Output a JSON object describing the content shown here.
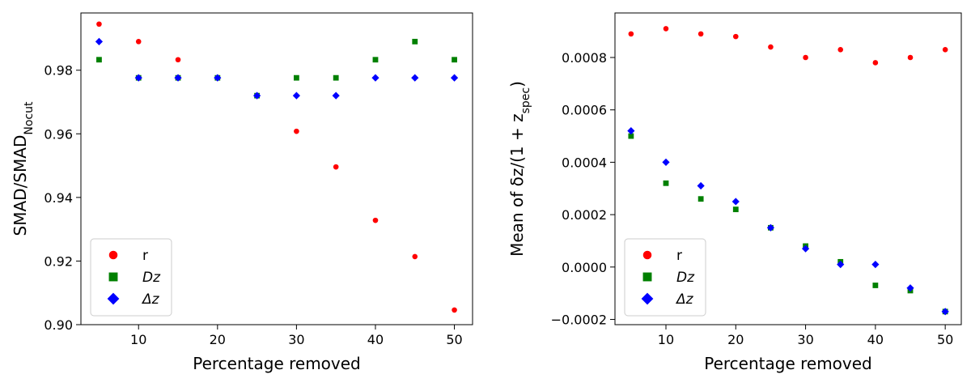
{
  "chart_data": [
    {
      "type": "scatter",
      "xlabel": "Percentage removed",
      "ylabel": "SMAD/SMAD",
      "ylabel_sub": "Nocut",
      "xlim": [
        2.7,
        52.3
      ],
      "ylim": [
        0.9,
        0.998
      ],
      "xticks": [
        10,
        20,
        30,
        40,
        50
      ],
      "xtick_labels": [
        "10",
        "20",
        "30",
        "40",
        "50"
      ],
      "yticks": [
        0.9,
        0.92,
        0.94,
        0.96,
        0.98
      ],
      "ytick_labels": [
        "0.90",
        "0.92",
        "0.94",
        "0.96",
        "0.98"
      ],
      "grid": false,
      "legend_position": "lower-left",
      "series": [
        {
          "name": "r",
          "marker": "circle",
          "color": "#ff0000",
          "x": [
            5,
            10,
            15,
            30,
            35,
            40,
            45,
            50
          ],
          "y": [
            0.9945,
            0.989,
            0.9833,
            0.9608,
            0.9496,
            0.9328,
            0.9214,
            0.9046
          ]
        },
        {
          "name": "Dz",
          "marker": "square",
          "color": "#008000",
          "x": [
            5,
            10,
            15,
            20,
            25,
            30,
            35,
            40,
            45,
            50
          ],
          "y": [
            0.9833,
            0.9776,
            0.9776,
            0.9776,
            0.972,
            0.9776,
            0.9776,
            0.9833,
            0.989,
            0.9833
          ]
        },
        {
          "name": "Δz",
          "marker": "diamond",
          "color": "#0000ff",
          "x": [
            5,
            10,
            15,
            20,
            25,
            30,
            35,
            40,
            45,
            50
          ],
          "y": [
            0.989,
            0.9776,
            0.9776,
            0.9776,
            0.972,
            0.972,
            0.972,
            0.9776,
            0.9776,
            0.9776
          ]
        }
      ]
    },
    {
      "type": "scatter",
      "xlabel": "Percentage removed",
      "ylabel": "Mean of δz/(1 + z",
      "ylabel_sub": "spec",
      "ylabel_end": ")",
      "xlim": [
        2.7,
        52.3
      ],
      "ylim": [
        -0.00022,
        0.00097
      ],
      "xticks": [
        10,
        20,
        30,
        40,
        50
      ],
      "xtick_labels": [
        "10",
        "20",
        "30",
        "40",
        "50"
      ],
      "yticks": [
        -0.0002,
        0,
        0.0002,
        0.0004,
        0.0006,
        0.0008
      ],
      "ytick_labels": [
        "−0.0002",
        "0.0000",
        "0.0002",
        "0.0004",
        "0.0006",
        "0.0008"
      ],
      "grid": false,
      "legend_position": "lower-left",
      "series": [
        {
          "name": "r",
          "marker": "circle",
          "color": "#ff0000",
          "x": [
            5,
            10,
            15,
            20,
            25,
            30,
            35,
            40,
            45,
            50
          ],
          "y": [
            0.00089,
            0.00091,
            0.00089,
            0.00088,
            0.00084,
            0.0008,
            0.00083,
            0.00078,
            0.0008,
            0.00083
          ]
        },
        {
          "name": "Dz",
          "marker": "square",
          "color": "#008000",
          "x": [
            5,
            10,
            15,
            20,
            25,
            30,
            35,
            40,
            45,
            50
          ],
          "y": [
            0.0005,
            0.00032,
            0.00026,
            0.00022,
            0.00015,
            8e-05,
            2e-05,
            -7e-05,
            -9e-05,
            -0.00017
          ]
        },
        {
          "name": "Δz",
          "marker": "diamond",
          "color": "#0000ff",
          "x": [
            5,
            10,
            15,
            20,
            25,
            30,
            35,
            40,
            45,
            50
          ],
          "y": [
            0.00052,
            0.0004,
            0.00031,
            0.00025,
            0.00015,
            7e-05,
            1e-05,
            1e-05,
            -8e-05,
            -0.00017
          ]
        }
      ]
    }
  ]
}
